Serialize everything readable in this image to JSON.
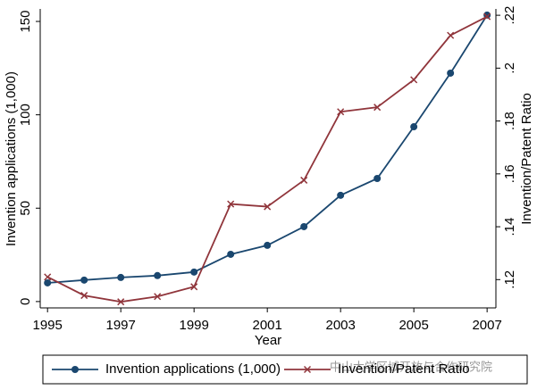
{
  "chart_data": {
    "type": "line",
    "x_label": "Year",
    "y_label": "Invention applications (1,000)",
    "y2_label": "Invention/Patent Ratio",
    "x": [
      1995,
      1996,
      1997,
      1998,
      1999,
      2000,
      2001,
      2002,
      2003,
      2004,
      2005,
      2006,
      2007
    ],
    "xlim": [
      1994.8,
      2007.24
    ],
    "xticks": [
      1995,
      1997,
      1999,
      2001,
      2003,
      2005,
      2007
    ],
    "ylim": [
      -3.4,
      156.7
    ],
    "yticks": [
      0,
      50,
      100,
      150
    ],
    "y2lim": [
      0.1093,
      0.2224
    ],
    "y2ticks": [
      {
        "value": 0.12,
        "label": ".12"
      },
      {
        "value": 0.14,
        "label": ".14"
      },
      {
        "value": 0.16,
        "label": ".16"
      },
      {
        "value": 0.18,
        "label": ".18"
      },
      {
        "value": 0.2,
        "label": ".2"
      },
      {
        "value": 0.22,
        "label": ".22"
      }
    ],
    "series": [
      {
        "name": "Invention applications (1,000)",
        "color": "#1a476f",
        "marker": "circle",
        "values": [
          10,
          11.5,
          12.9,
          13.9,
          15.8,
          25.3,
          30.1,
          40.1,
          56.9,
          65.9,
          93.6,
          122.3,
          153.4
        ]
      },
      {
        "name": "Invention/Patent Ratio",
        "color": "#90353b",
        "marker": "x",
        "axis": "y2",
        "values": [
          0.121,
          0.114,
          0.1116,
          0.1136,
          0.1173,
          0.1486,
          0.1476,
          0.1576,
          0.1835,
          0.1852,
          0.1956,
          0.2124,
          0.2195
        ]
      }
    ],
    "legend": "bottom",
    "watermark": "中山大学区域开放与合作研究院"
  }
}
